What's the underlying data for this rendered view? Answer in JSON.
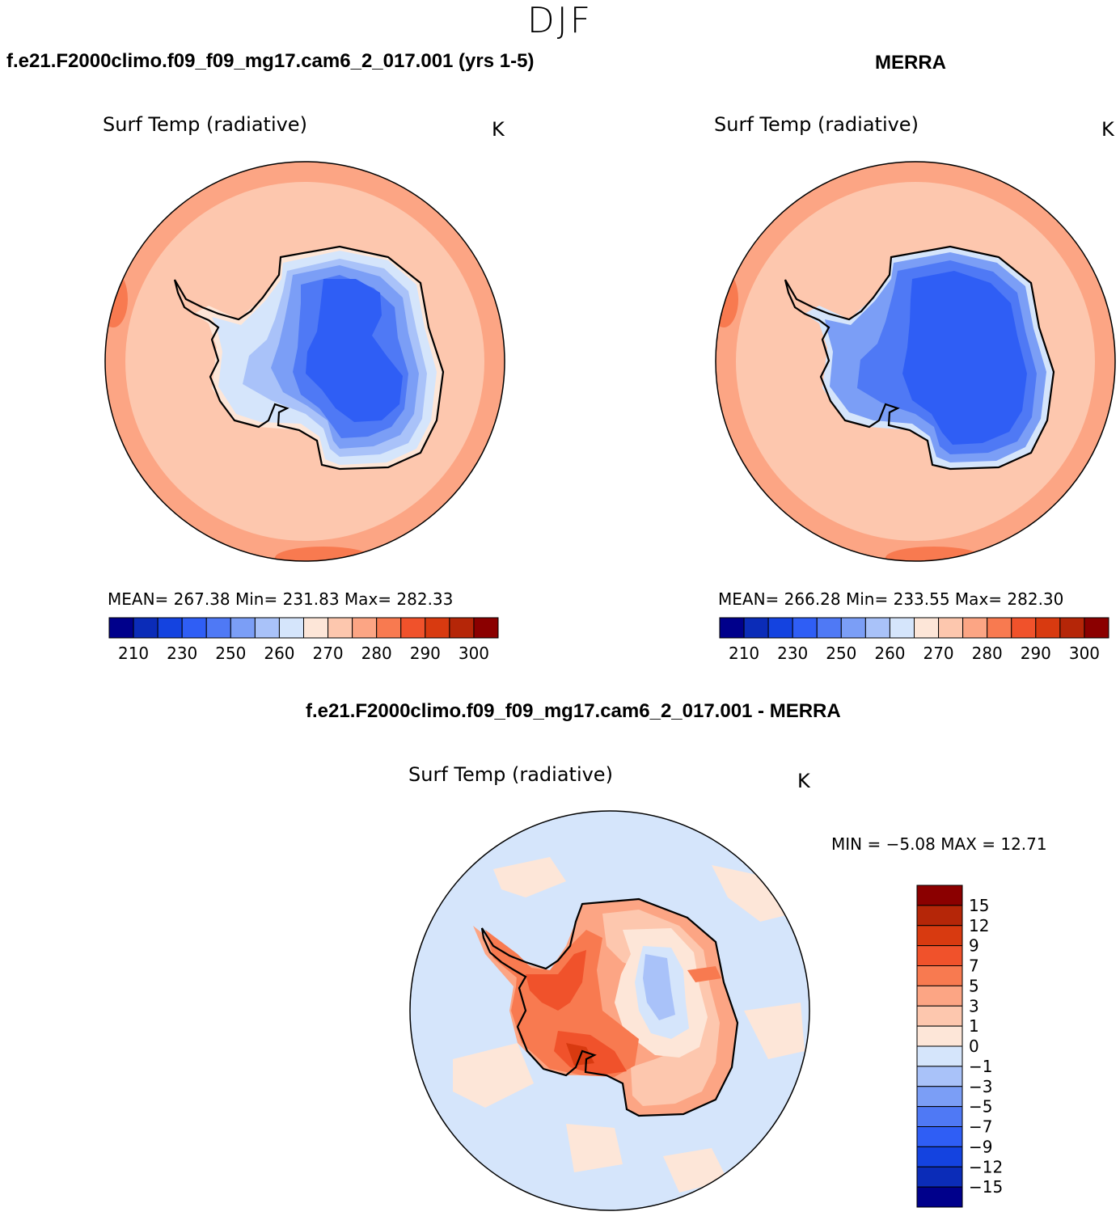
{
  "figure": {
    "title": "DJF"
  },
  "panels": [
    {
      "case": "f.e21.F2000climo.f09_f09_mg17.cam6_2_017.001 (yrs 1-5)",
      "variable": "Surf Temp (radiative)",
      "units": "K",
      "stats": "MEAN=  267.38    Min=  231.83    Max=  282.33"
    },
    {
      "case": "MERRA",
      "variable": "Surf Temp (radiative)",
      "units": "K",
      "stats": "MEAN=  266.28    Min=  233.55    Max=  282.30"
    },
    {
      "case": "f.e21.F2000climo.f09_f09_mg17.cam6_2_017.001 - MERRA",
      "variable": "Surf Temp (radiative)",
      "units": "K",
      "stats": "MIN =    −5.08  MAX =    12.71"
    }
  ],
  "chart_data": [
    {
      "type": "heatmap",
      "projection": "south-polar-stereographic",
      "title": "Surf Temp (radiative)",
      "units": "K",
      "mean": 267.38,
      "min": 231.83,
      "max": 282.33,
      "colorbar_ticks": [
        "210",
        "230",
        "250",
        "260",
        "270",
        "280",
        "290",
        "300"
      ],
      "colorbar_colors": [
        "#00008b",
        "#0b2cb8",
        "#1443e0",
        "#2f5ef5",
        "#4f79f5",
        "#7b9ef6",
        "#a9c2f9",
        "#d5e5fb",
        "#fde6d8",
        "#fdc7ae",
        "#fca584",
        "#f87a50",
        "#f0522b",
        "#d83a10",
        "#b52608",
        "#8b0000"
      ]
    },
    {
      "type": "heatmap",
      "projection": "south-polar-stereographic",
      "title": "Surf Temp (radiative)",
      "units": "K",
      "mean": 266.28,
      "min": 233.55,
      "max": 282.3,
      "colorbar_ticks": [
        "210",
        "230",
        "250",
        "260",
        "270",
        "280",
        "290",
        "300"
      ],
      "colorbar_colors": [
        "#00008b",
        "#0b2cb8",
        "#1443e0",
        "#2f5ef5",
        "#4f79f5",
        "#7b9ef6",
        "#a9c2f9",
        "#d5e5fb",
        "#fde6d8",
        "#fdc7ae",
        "#fca584",
        "#f87a50",
        "#f0522b",
        "#d83a10",
        "#b52608",
        "#8b0000"
      ]
    },
    {
      "type": "heatmap",
      "projection": "south-polar-stereographic",
      "title": "Surf Temp (radiative)",
      "units": "K",
      "min": -5.08,
      "max": 12.71,
      "colorbar_ticks": [
        "15",
        "12",
        "9",
        "7",
        "5",
        "3",
        "1",
        "0",
        "−1",
        "−3",
        "−5",
        "−7",
        "−9",
        "−12",
        "−15"
      ],
      "colorbar_colors": [
        "#8b0000",
        "#b52608",
        "#d83a10",
        "#f0522b",
        "#f87a50",
        "#fca584",
        "#fdc7ae",
        "#fde6d8",
        "#d5e5fb",
        "#a9c2f9",
        "#7b9ef6",
        "#4f79f5",
        "#2f5ef5",
        "#1443e0",
        "#0b2cb8",
        "#00008b"
      ]
    }
  ]
}
